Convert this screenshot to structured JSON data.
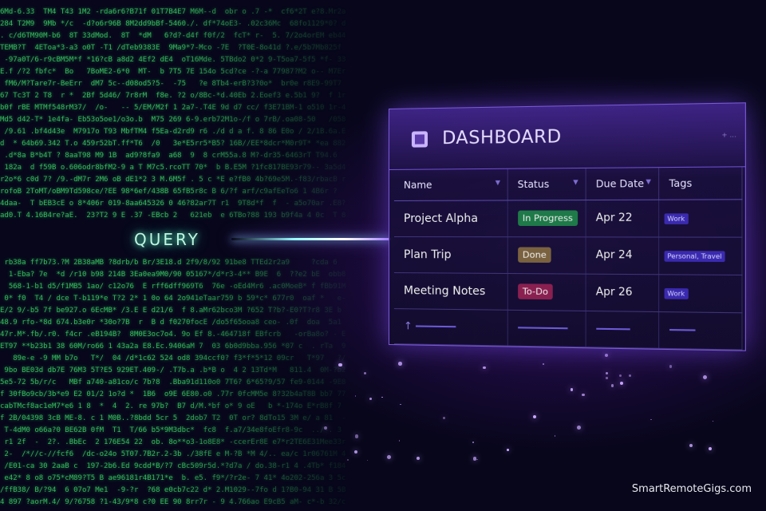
{
  "query_label": "QUERY",
  "dashboard": {
    "title": "DASHBOARD",
    "header_right": "+ ...",
    "columns": [
      "Name",
      "Status",
      "Due Date",
      "Tags"
    ],
    "rows": [
      {
        "name": "Project Alpha",
        "status": "In Progress",
        "status_color": "#1e7a48",
        "due": "Apr 22",
        "tags": "Work"
      },
      {
        "name": "Plan Trip",
        "status": "Done",
        "status_color": "#7a6240",
        "due": "Apr 24",
        "tags": "Personal, Travel"
      },
      {
        "name": "Meeting Notes",
        "status": "To-Do",
        "status_color": "#8a2050",
        "due": "Apr 26",
        "tags": "Work"
      }
    ],
    "footer_icon": "arrow-up-icon"
  },
  "watermark": "SmartRemoteGigs.com",
  "colors": {
    "matrix": "#3fd46a",
    "accent": "#7a5ad8",
    "background": "#07061a"
  }
}
